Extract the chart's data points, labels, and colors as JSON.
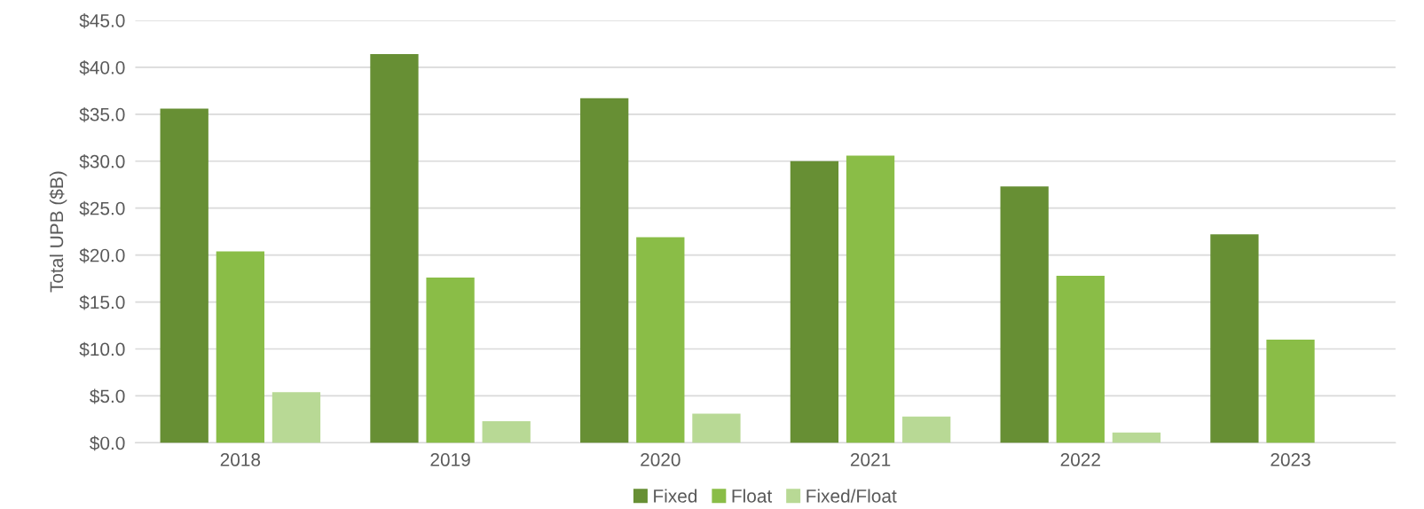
{
  "chart_data": {
    "type": "bar",
    "ylabel": "Total UPB ($B)",
    "categories": [
      "2018",
      "2019",
      "2020",
      "2021",
      "2022",
      "2023"
    ],
    "series": [
      {
        "name": "Fixed",
        "color": "#678f34",
        "values": [
          35.6,
          41.4,
          36.7,
          30.0,
          27.3,
          22.2
        ]
      },
      {
        "name": "Float",
        "color": "#8abd47",
        "values": [
          20.4,
          17.6,
          21.9,
          30.6,
          17.8,
          11.0
        ]
      },
      {
        "name": "Fixed/Float",
        "color": "#b8d995",
        "values": [
          5.4,
          2.3,
          3.1,
          2.8,
          1.1,
          null
        ]
      }
    ],
    "ylim": [
      0,
      45
    ],
    "yticks": [
      {
        "value": 0,
        "label": "$0.0"
      },
      {
        "value": 5,
        "label": "$5.0"
      },
      {
        "value": 10,
        "label": "$10.0"
      },
      {
        "value": 15,
        "label": "$15.0"
      },
      {
        "value": 20,
        "label": "$20.0"
      },
      {
        "value": 25,
        "label": "$25.0"
      },
      {
        "value": 30,
        "label": "$30.0"
      },
      {
        "value": 35,
        "label": "$35.0"
      },
      {
        "value": 40,
        "label": "$40.0"
      },
      {
        "value": 45,
        "label": "$45.0"
      }
    ],
    "grid": "y",
    "legend": "bottom"
  }
}
